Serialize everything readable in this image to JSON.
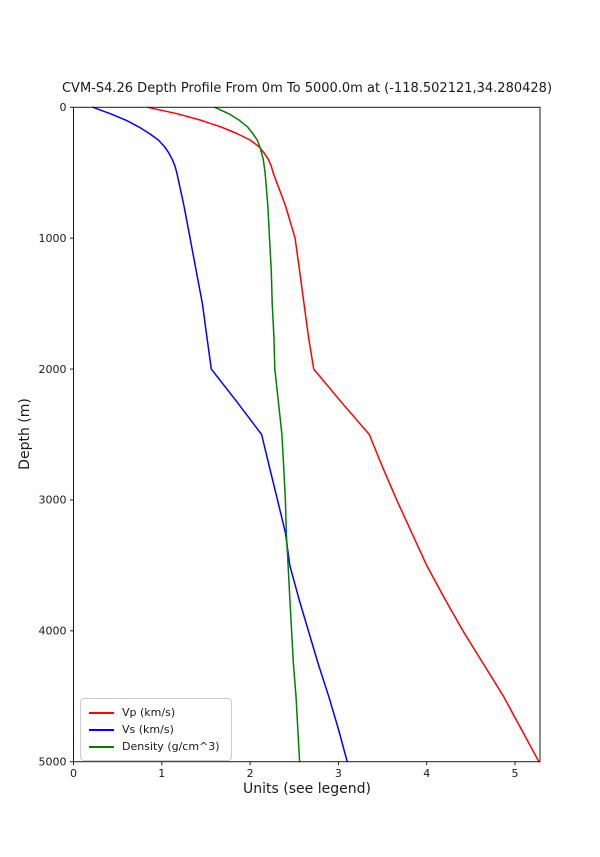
{
  "title": "CVM-S4.26 Depth Profile From 0m To 5000.0m at (-118.502121,34.280428)",
  "chart_data": {
    "type": "line",
    "title": "CVM-S4.26 Depth Profile From 0m To 5000.0m at (-118.502121,34.280428)",
    "xlabel": "Units (see legend)",
    "ylabel": "Depth (m)",
    "xlim": [
      0,
      5.283
    ],
    "ylim": [
      0,
      5000
    ],
    "y_inverted": true,
    "grid": false,
    "legend_position": "lower left",
    "x_ticks": [
      0,
      1,
      2,
      3,
      4,
      5
    ],
    "y_ticks": [
      0,
      1000,
      2000,
      3000,
      4000,
      5000
    ],
    "orientation_note": "depth profile: y axis is depth (0 at top), x axis is the measured value",
    "depths": [
      0,
      50,
      100,
      150,
      200,
      250,
      300,
      350,
      400,
      450,
      500,
      750,
      1000,
      1250,
      1500,
      1750,
      2000,
      2250,
      2500,
      2750,
      3000,
      3250,
      3500,
      3750,
      4000,
      4250,
      4500,
      4750,
      5000
    ],
    "series": [
      {
        "name": "Vp (km/s)",
        "key": "vp",
        "color": "#ff0000",
        "values": [
          0.84,
          1.18,
          1.45,
          1.67,
          1.85,
          2.0,
          2.1,
          2.16,
          2.21,
          2.24,
          2.26,
          2.4,
          2.51,
          2.56,
          2.61,
          2.66,
          2.72,
          3.03,
          3.35,
          3.5,
          3.66,
          3.83,
          4.0,
          4.2,
          4.41,
          4.64,
          4.87,
          5.07,
          5.27
        ]
      },
      {
        "name": "Vs (km/s)",
        "key": "vs",
        "color": "#0000ff",
        "values": [
          0.22,
          0.42,
          0.6,
          0.74,
          0.86,
          0.96,
          1.03,
          1.08,
          1.12,
          1.15,
          1.17,
          1.25,
          1.32,
          1.39,
          1.46,
          1.51,
          1.56,
          1.85,
          2.13,
          2.22,
          2.31,
          2.4,
          2.45,
          2.55,
          2.66,
          2.77,
          2.89,
          3.0,
          3.1
        ]
      },
      {
        "name": "Density (g/cm^3)",
        "key": "density",
        "color": "#008000",
        "values": [
          1.6,
          1.76,
          1.88,
          1.97,
          2.03,
          2.08,
          2.11,
          2.13,
          2.15,
          2.16,
          2.17,
          2.2,
          2.22,
          2.24,
          2.25,
          2.27,
          2.28,
          2.32,
          2.36,
          2.38,
          2.4,
          2.41,
          2.43,
          2.45,
          2.47,
          2.49,
          2.52,
          2.54,
          2.56
        ]
      }
    ]
  }
}
